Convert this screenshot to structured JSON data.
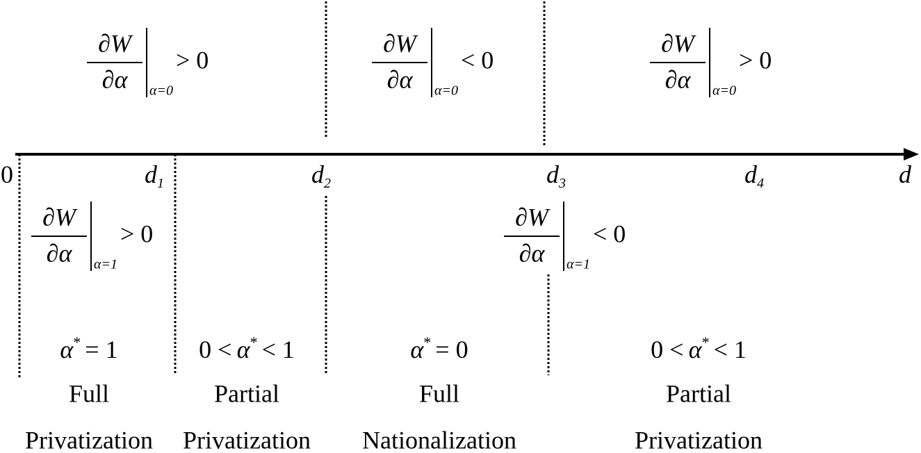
{
  "axis": {
    "ticks": [
      {
        "symbol": "0"
      },
      {
        "symbol": "d",
        "index": "1"
      },
      {
        "symbol": "d",
        "index": "2"
      },
      {
        "symbol": "d",
        "index": "3"
      },
      {
        "symbol": "d",
        "index": "4"
      },
      {
        "symbol": "d"
      }
    ]
  },
  "top_conditions": [
    {
      "numerator": "∂W",
      "denominator": "∂α",
      "subscript": "α=0",
      "relation": "> 0"
    },
    {
      "numerator": "∂W",
      "denominator": "∂α",
      "subscript": "α=0",
      "relation": "< 0"
    },
    {
      "numerator": "∂W",
      "denominator": "∂α",
      "subscript": "α=0",
      "relation": "> 0"
    }
  ],
  "bottom_conditions": [
    {
      "numerator": "∂W",
      "denominator": "∂α",
      "subscript": "α=1",
      "relation": "> 0"
    },
    {
      "numerator": "∂W",
      "denominator": "∂α",
      "subscript": "α=1",
      "relation": "< 0"
    }
  ],
  "regimes": [
    {
      "condition": {
        "symbol": "α",
        "sup": "*",
        "suffix": "= 1"
      },
      "label": [
        "Full",
        "Privatization"
      ]
    },
    {
      "condition": {
        "prefix": "0 <",
        "symbol": "α",
        "sup": "*",
        "suffix": "< 1"
      },
      "label": [
        "Partial",
        "Privatization"
      ]
    },
    {
      "condition": {
        "symbol": "α",
        "sup": "*",
        "suffix": "= 0"
      },
      "label": [
        "Full",
        "Nationalization"
      ]
    },
    {
      "condition": {
        "prefix": "0 <",
        "symbol": "α",
        "sup": "*",
        "suffix": "< 1"
      },
      "label": [
        "Partial",
        "Privatization"
      ]
    }
  ]
}
